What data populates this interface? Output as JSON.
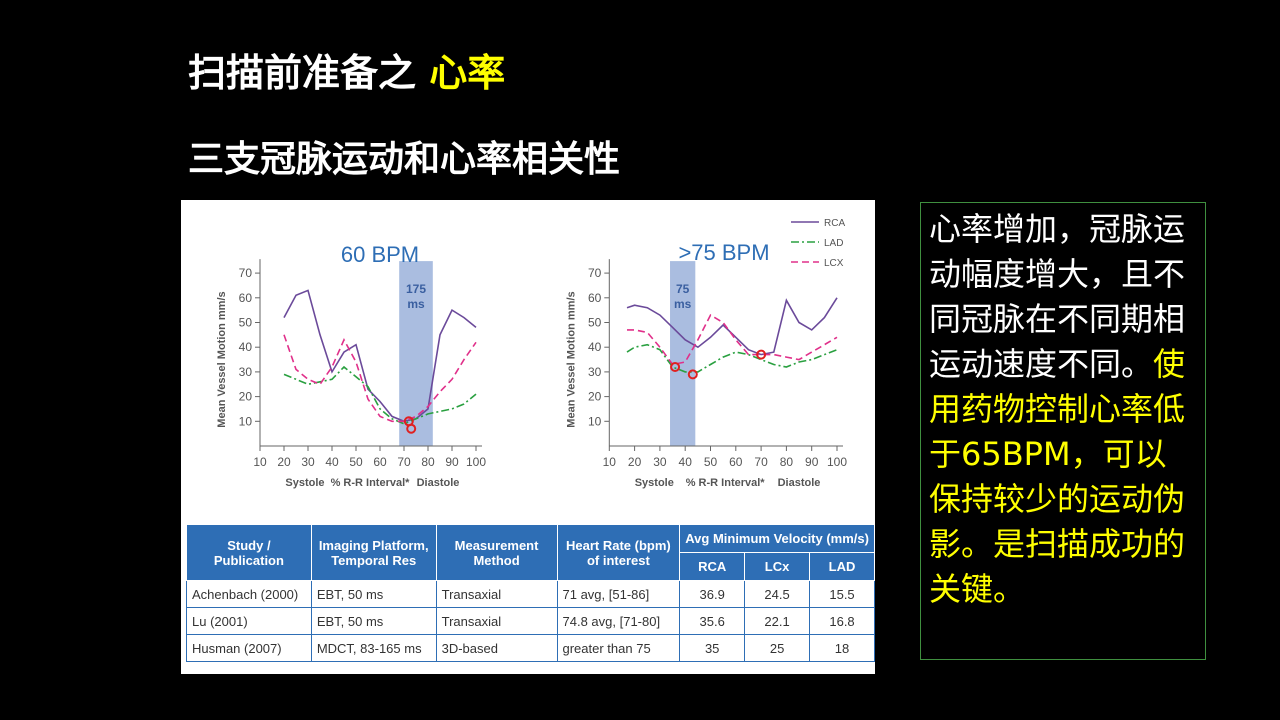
{
  "slide": {
    "title_main": "扫描前准备之 ",
    "title_highlight": "心率",
    "subtitle": "三支冠脉运动和心率相关性"
  },
  "colors": {
    "background": "#000000",
    "highlight": "#ffff00",
    "RCA": "#6b4a9a",
    "LAD": "#2aa040",
    "LCX": "#e0308a",
    "window": "#aabde0",
    "table_header": "#2e6eb5"
  },
  "chart_data": [
    {
      "type": "line",
      "title": "60 BPM",
      "ylabel": "Mean Vessel Motion mm/s",
      "xlabel": "% R-R Interval*",
      "x_phase_labels": [
        "Systole",
        "Diastole"
      ],
      "xlim": [
        10,
        100
      ],
      "ylim": [
        0,
        70
      ],
      "xticks": [
        10,
        20,
        30,
        40,
        50,
        60,
        70,
        80,
        90,
        100
      ],
      "yticks": [
        10,
        20,
        30,
        40,
        50,
        60,
        70
      ],
      "window": {
        "label": "175 ms",
        "line1": "175",
        "line2": "ms",
        "x_start": 68,
        "x_end": 82
      },
      "markers": [
        {
          "x": 72,
          "y": 10
        },
        {
          "x": 73,
          "y": 7
        }
      ],
      "series": [
        {
          "name": "RCA",
          "style": "solid",
          "x": [
            20,
            25,
            30,
            35,
            40,
            45,
            50,
            55,
            60,
            65,
            70,
            75,
            80,
            85,
            90,
            95,
            100
          ],
          "y": [
            52,
            61,
            63,
            45,
            30,
            38,
            41,
            23,
            18,
            12,
            10,
            11,
            15,
            45,
            55,
            52,
            48
          ]
        },
        {
          "name": "LAD",
          "style": "dashdot",
          "x": [
            20,
            25,
            30,
            35,
            40,
            45,
            50,
            55,
            60,
            65,
            70,
            75,
            80,
            85,
            90,
            95,
            100
          ],
          "y": [
            29,
            27,
            25,
            26,
            27,
            32,
            28,
            24,
            15,
            11,
            9,
            11,
            13,
            14,
            15,
            17,
            21
          ]
        },
        {
          "name": "LCX",
          "style": "dash",
          "x": [
            20,
            25,
            30,
            35,
            40,
            45,
            50,
            55,
            60,
            65,
            70,
            75,
            80,
            85,
            90,
            95,
            100
          ],
          "y": [
            45,
            31,
            27,
            25,
            32,
            43,
            34,
            19,
            12,
            10,
            10,
            12,
            16,
            22,
            27,
            35,
            42
          ]
        }
      ]
    },
    {
      "type": "line",
      "title": ">75 BPM",
      "ylabel": "Mean Vessel Motion mm/s",
      "xlabel": "% R-R Interval*",
      "x_phase_labels": [
        "Systole",
        "Diastole"
      ],
      "xlim": [
        10,
        100
      ],
      "ylim": [
        0,
        70
      ],
      "xticks": [
        10,
        20,
        30,
        40,
        50,
        60,
        70,
        80,
        90,
        100
      ],
      "yticks": [
        10,
        20,
        30,
        40,
        50,
        60,
        70
      ],
      "legend": [
        "RCA",
        "LAD",
        "LCX"
      ],
      "window": {
        "label": "75 ms",
        "line1": "75",
        "line2": "ms",
        "x_start": 34,
        "x_end": 44
      },
      "markers": [
        {
          "x": 36,
          "y": 32
        },
        {
          "x": 43,
          "y": 29
        },
        {
          "x": 70,
          "y": 37
        }
      ],
      "series": [
        {
          "name": "RCA",
          "style": "solid",
          "x": [
            17,
            20,
            25,
            30,
            35,
            40,
            45,
            50,
            55,
            60,
            65,
            70,
            75,
            80,
            85,
            90,
            95,
            100
          ],
          "y": [
            56,
            57,
            56,
            53,
            48,
            43,
            40,
            44,
            49,
            44,
            39,
            37,
            38,
            59,
            50,
            47,
            52,
            60
          ]
        },
        {
          "name": "LAD",
          "style": "dashdot",
          "x": [
            17,
            20,
            25,
            30,
            35,
            40,
            45,
            50,
            55,
            60,
            65,
            70,
            75,
            80,
            85,
            90,
            95,
            100
          ],
          "y": [
            38,
            40,
            41,
            39,
            32,
            30,
            30,
            33,
            36,
            38,
            37,
            35,
            33,
            32,
            34,
            35,
            37,
            39
          ]
        },
        {
          "name": "LCX",
          "style": "dash",
          "x": [
            17,
            20,
            25,
            30,
            35,
            40,
            45,
            50,
            55,
            60,
            65,
            70,
            75,
            80,
            85,
            90,
            95,
            100
          ],
          "y": [
            47,
            47,
            46,
            40,
            33,
            34,
            43,
            53,
            50,
            43,
            37,
            37,
            37,
            36,
            35,
            38,
            41,
            44
          ]
        }
      ]
    }
  ],
  "table": {
    "header_row1": [
      "Study / Publication",
      "Imaging Platform, Temporal Res",
      "Measurement Method",
      "Heart Rate (bpm) of interest",
      "Avg Minimum Velocity (mm/s)"
    ],
    "header_row2": [
      "RCA",
      "LCx",
      "LAD"
    ],
    "rows": [
      [
        "Achenbach (2000)",
        "EBT, 50 ms",
        "Transaxial",
        "71 avg, [51-86]",
        "36.9",
        "24.5",
        "15.5"
      ],
      [
        "Lu (2001)",
        "EBT, 50 ms",
        "Transaxial",
        "74.8 avg, [71-80]",
        "35.6",
        "22.1",
        "16.8"
      ],
      [
        "Husman (2007)",
        "MDCT, 83-165 ms",
        "3D-based",
        "greater than 75",
        "35",
        "25",
        "18"
      ]
    ]
  },
  "side_text": {
    "white": "心率增加，冠脉运动幅度增大，且不同冠脉在不同期相运动速度不同。",
    "yellow": "使用药物控制心率低于65BPM，可以保持较少的运动伪影。是扫描成功的关键。"
  }
}
